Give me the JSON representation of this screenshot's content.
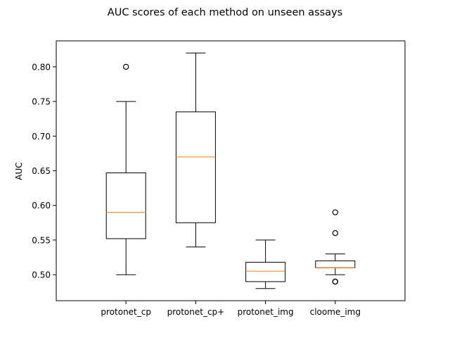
{
  "chart_data": {
    "type": "box",
    "title": "AUC scores of each method on unseen assays",
    "xlabel": "",
    "ylabel": "AUC",
    "ylim": [
      0.4625,
      0.8375
    ],
    "yticks": [
      "0.50",
      "0.55",
      "0.60",
      "0.65",
      "0.70",
      "0.75",
      "0.80"
    ],
    "ytick_values": [
      0.5,
      0.55,
      0.6,
      0.65,
      0.7,
      0.75,
      0.8
    ],
    "grid": false,
    "categories": [
      "protonet_cp",
      "protonet_cp+",
      "protonet_img",
      "cloome_img"
    ],
    "boxes": [
      {
        "name": "protonet_cp",
        "whisker_low": 0.5,
        "q1": 0.552,
        "median": 0.59,
        "q3": 0.647,
        "whisker_high": 0.75,
        "outliers": [
          0.8
        ]
      },
      {
        "name": "protonet_cp+",
        "whisker_low": 0.54,
        "q1": 0.575,
        "median": 0.67,
        "q3": 0.735,
        "whisker_high": 0.82,
        "outliers": []
      },
      {
        "name": "protonet_img",
        "whisker_low": 0.48,
        "q1": 0.49,
        "median": 0.505,
        "q3": 0.518,
        "whisker_high": 0.55,
        "outliers": []
      },
      {
        "name": "cloome_img",
        "whisker_low": 0.5,
        "q1": 0.51,
        "median": 0.51,
        "q3": 0.52,
        "whisker_high": 0.53,
        "outliers": [
          0.49,
          0.49,
          0.56,
          0.59
        ]
      }
    ],
    "colors": {
      "box": "#000000",
      "median": "#ff7f0e",
      "outlier": "#000000"
    }
  }
}
